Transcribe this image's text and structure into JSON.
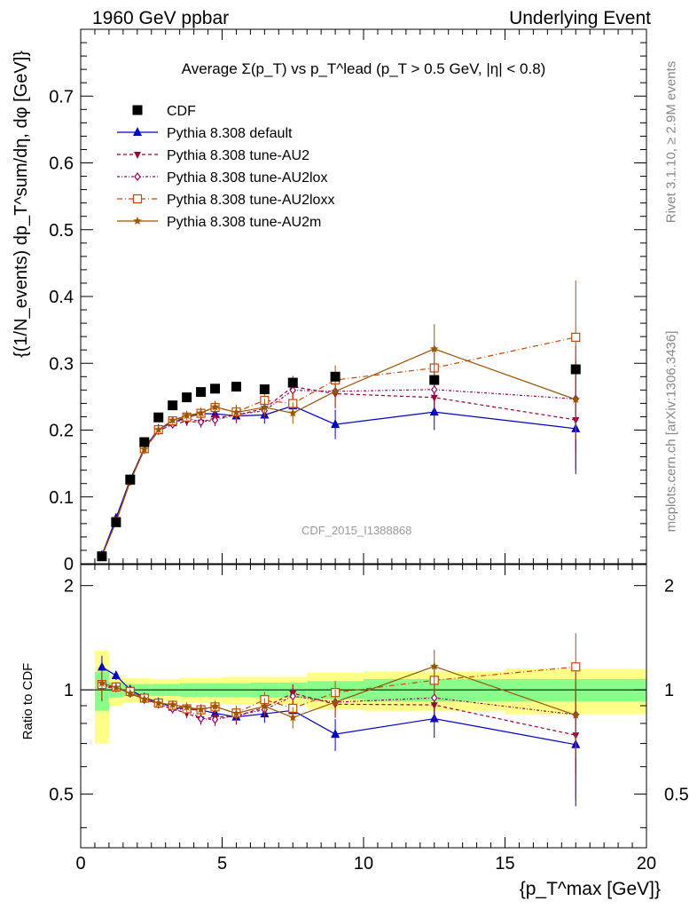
{
  "header": {
    "left": "1960 GeV ppbar",
    "right": "Underlying Event"
  },
  "side_labels": {
    "rivet": "Rivet 3.1.10, ≥ 2.9M events",
    "mcplots": "mcplots.cern.ch [arXiv:1306.3436]"
  },
  "watermark": "CDF_2015_I1388868",
  "chart_data": {
    "type": "scatter",
    "title": "Average Σ(p_T) vs p_T^lead (p_T > 0.5 GeV, |η| < 0.8)",
    "ylabel": "{(1/N_events) dp_T^sum/dη, dφ [GeV]}",
    "xlabel": "{p_T^max [GeV]}",
    "ratio_ylabel": "Ratio to CDF",
    "xlim": [
      0,
      20
    ],
    "ylim": [
      0,
      0.8
    ],
    "ratio_ylim": [
      0.35,
      2.3
    ],
    "xticks": [
      0,
      5,
      10,
      15,
      20
    ],
    "yticks": [
      0,
      0.1,
      0.2,
      0.3,
      0.4,
      0.5,
      0.6,
      0.7
    ],
    "ytick_labels": [
      "0",
      "0.1",
      "0.2",
      "0.3",
      "0.4",
      "0.5",
      "0.6",
      "0.7"
    ],
    "ratio_yticks": [
      0.5,
      1,
      2
    ],
    "ratio_ytick_labels": [
      "0.5",
      "1",
      "2"
    ],
    "legend_position": "top-left",
    "cdf": {
      "name": "CDF",
      "x": [
        0.75,
        1.25,
        1.75,
        2.25,
        2.75,
        3.25,
        3.75,
        4.25,
        4.75,
        5.5,
        6.5,
        7.5,
        9.0,
        12.5,
        17.5
      ],
      "y": [
        0.011,
        0.062,
        0.126,
        0.182,
        0.219,
        0.237,
        0.249,
        0.257,
        0.262,
        0.265,
        0.261,
        0.271,
        0.28,
        0.275,
        0.291
      ],
      "xerr": [
        0.25,
        0.25,
        0.25,
        0.25,
        0.25,
        0.25,
        0.25,
        0.25,
        0.25,
        0.5,
        0.5,
        0.5,
        1.0,
        2.5,
        2.5
      ],
      "band_inner": [
        0.13,
        0.05,
        0.04,
        0.04,
        0.04,
        0.04,
        0.045,
        0.045,
        0.045,
        0.045,
        0.05,
        0.05,
        0.06,
        0.075,
        0.075
      ],
      "band_outer": [
        0.3,
        0.1,
        0.08,
        0.08,
        0.075,
        0.075,
        0.085,
        0.085,
        0.085,
        0.09,
        0.09,
        0.09,
        0.12,
        0.13,
        0.15
      ]
    },
    "series": [
      {
        "name": "Pythia 8.308 default",
        "color": "#0000cc",
        "marker": "triangle-up",
        "dash": "",
        "stroke_width": 1.2,
        "x": [
          0.75,
          1.25,
          1.75,
          2.25,
          2.75,
          3.25,
          3.75,
          4.25,
          4.75,
          5.5,
          6.5,
          7.5,
          9.0,
          12.5,
          17.5
        ],
        "y": [
          0.0128,
          0.0682,
          0.1261,
          0.1729,
          0.2015,
          0.2112,
          0.2187,
          0.2247,
          0.2243,
          0.2213,
          0.2226,
          0.2363,
          0.2085,
          0.2271,
          0.2022
        ],
        "err": [
          0.001,
          0.002,
          0.003,
          0.004,
          0.005,
          0.006,
          0.007,
          0.008,
          0.009,
          0.011,
          0.013,
          0.016,
          0.022,
          0.027,
          0.068
        ]
      },
      {
        "name": "Pythia 8.308 tune-AU2",
        "color": "#990033",
        "marker": "triangle-down",
        "dash": "4,3",
        "stroke_width": 1.2,
        "x": [
          0.75,
          1.25,
          1.75,
          2.25,
          2.75,
          3.25,
          3.75,
          4.25,
          4.75,
          5.5,
          6.5,
          7.5,
          9.0,
          12.5,
          17.5
        ],
        "y": [
          0.0112,
          0.0631,
          0.1235,
          0.1714,
          0.1989,
          0.2087,
          0.2132,
          0.2117,
          0.2183,
          0.2225,
          0.2323,
          0.265,
          0.2545,
          0.2488,
          0.2153
        ],
        "err": [
          0.001,
          0.002,
          0.003,
          0.004,
          0.005,
          0.006,
          0.007,
          0.008,
          0.009,
          0.011,
          0.013,
          0.016,
          0.022,
          0.027,
          0.075
        ]
      },
      {
        "name": "Pythia 8.308 tune-AU2lox",
        "color": "#990066",
        "marker": "diamond-open",
        "dash": "3,2,1,2",
        "stroke_width": 1.2,
        "x": [
          0.75,
          1.25,
          1.75,
          2.25,
          2.75,
          3.25,
          3.75,
          4.25,
          4.75,
          5.5,
          6.5,
          7.5,
          9.0,
          12.5,
          17.5
        ],
        "y": [
          0.0113,
          0.0632,
          0.1231,
          0.1706,
          0.1991,
          0.2087,
          0.2186,
          0.212,
          0.215,
          0.2232,
          0.229,
          0.2597,
          0.258,
          0.2607,
          0.2466
        ],
        "err": [
          0.001,
          0.002,
          0.003,
          0.004,
          0.005,
          0.006,
          0.007,
          0.008,
          0.009,
          0.011,
          0.013,
          0.016,
          0.022,
          0.027,
          0.08
        ]
      },
      {
        "name": "Pythia 8.308 tune-AU2loxx",
        "color": "#cc4400",
        "marker": "square-open",
        "dash": "6,3,1,3",
        "stroke_width": 1.2,
        "x": [
          0.75,
          1.25,
          1.75,
          2.25,
          2.75,
          3.25,
          3.75,
          4.25,
          4.75,
          5.5,
          6.5,
          7.5,
          9.0,
          12.5,
          17.5
        ],
        "y": [
          0.0114,
          0.0632,
          0.1247,
          0.1722,
          0.2006,
          0.2138,
          0.2195,
          0.2251,
          0.2339,
          0.2272,
          0.2445,
          0.2398,
          0.275,
          0.293,
          0.339
        ],
        "err": [
          0.001,
          0.002,
          0.003,
          0.004,
          0.005,
          0.006,
          0.007,
          0.008,
          0.009,
          0.011,
          0.013,
          0.016,
          0.022,
          0.027,
          0.085
        ]
      },
      {
        "name": "Pythia 8.308 tune-AU2m",
        "color": "#995500",
        "marker": "star",
        "dash": "",
        "stroke_width": 1.2,
        "x": [
          0.75,
          1.25,
          1.75,
          2.25,
          2.75,
          3.25,
          3.75,
          4.25,
          4.75,
          5.5,
          6.5,
          7.5,
          9.0,
          12.5,
          17.5
        ],
        "y": [
          0.0115,
          0.063,
          0.1231,
          0.1712,
          0.2006,
          0.2147,
          0.2219,
          0.2256,
          0.2347,
          0.2265,
          0.2341,
          0.2255,
          0.258,
          0.3215,
          0.2458
        ],
        "err": [
          0.001,
          0.002,
          0.003,
          0.004,
          0.005,
          0.006,
          0.007,
          0.008,
          0.009,
          0.011,
          0.013,
          0.016,
          0.022,
          0.037,
          0.06
        ]
      }
    ]
  },
  "colors": {
    "band_outer": "#ffff88",
    "band_inner": "#88ff88",
    "cdf_marker": "#000000"
  }
}
